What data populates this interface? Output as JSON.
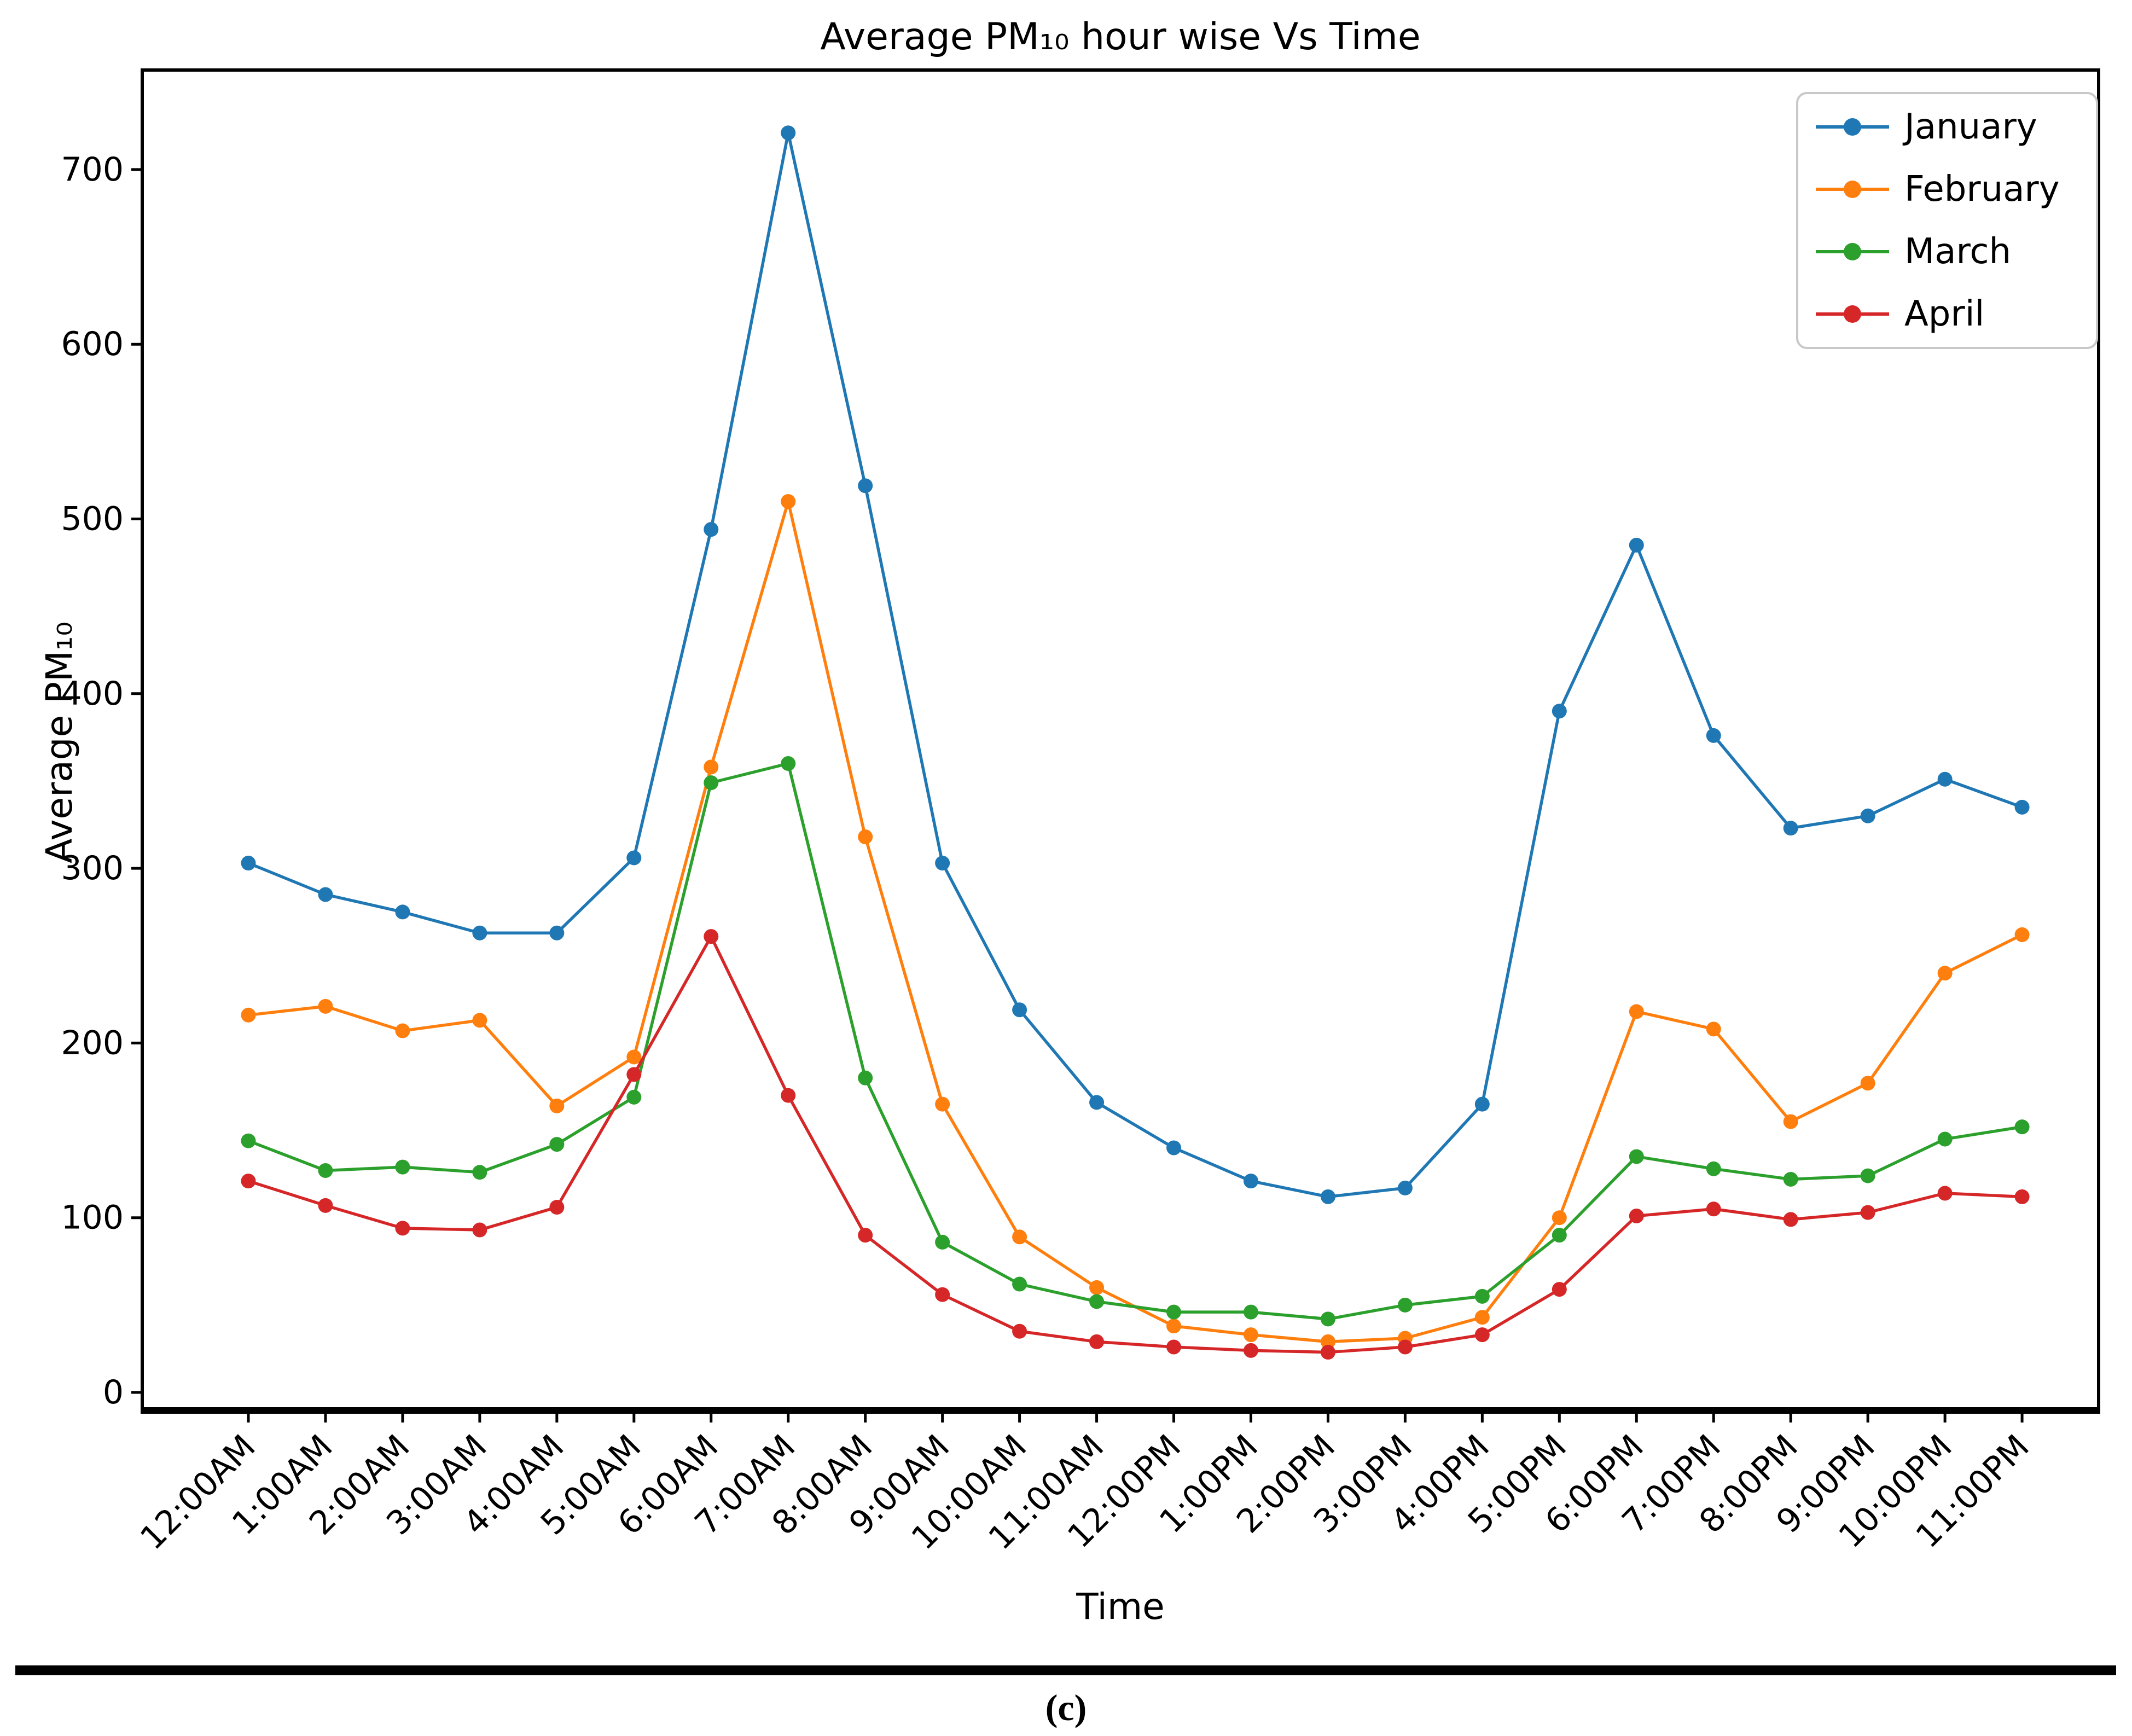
{
  "figure": {
    "title": "Average PM₁₀ hour wise Vs Time",
    "x_axis_label": "Time",
    "y_axis_label": "Average PM₁₀",
    "caption": "(c)"
  },
  "chart_data": {
    "type": "line",
    "title": "Average PM₁₀ hour wise Vs Time",
    "xlabel": "Time",
    "ylabel": "Average PM₁₀",
    "categories": [
      "12:00AM",
      "1:00AM",
      "2:00AM",
      "3:00AM",
      "4:00AM",
      "5:00AM",
      "6:00AM",
      "7:00AM",
      "8:00AM",
      "9:00AM",
      "10:00AM",
      "11:00AM",
      "12:00PM",
      "1:00PM",
      "2:00PM",
      "3:00PM",
      "4:00PM",
      "5:00PM",
      "6:00PM",
      "7:00PM",
      "8:00PM",
      "9:00PM",
      "10:00PM",
      "11:00PM"
    ],
    "yticks": [
      0,
      100,
      200,
      300,
      400,
      500,
      600,
      700
    ],
    "ylim": [
      -10,
      757
    ],
    "grid": false,
    "legend_position": "upper right",
    "marker": "circle",
    "series": [
      {
        "name": "January",
        "color": "#1f77b4",
        "values": [
          303,
          285,
          275,
          263,
          263,
          306,
          494,
          721,
          519,
          303,
          219,
          166,
          140,
          121,
          112,
          117,
          165,
          390,
          485,
          376,
          323,
          330,
          351,
          335
        ]
      },
      {
        "name": "February",
        "color": "#ff7f0e",
        "values": [
          216,
          221,
          207,
          213,
          164,
          192,
          358,
          510,
          318,
          165,
          89,
          60,
          38,
          33,
          29,
          31,
          43,
          100,
          218,
          208,
          155,
          177,
          240,
          262
        ]
      },
      {
        "name": "March",
        "color": "#2ca02c",
        "values": [
          144,
          127,
          129,
          126,
          142,
          169,
          349,
          360,
          180,
          86,
          62,
          52,
          46,
          46,
          42,
          50,
          55,
          90,
          135,
          128,
          122,
          124,
          145,
          152
        ]
      },
      {
        "name": "April",
        "color": "#d62728",
        "values": [
          121,
          107,
          94,
          93,
          106,
          182,
          261,
          170,
          90,
          56,
          35,
          29,
          26,
          24,
          23,
          26,
          33,
          59,
          101,
          105,
          99,
          103,
          114,
          112
        ]
      }
    ]
  },
  "colors": {
    "background": "#ffffff",
    "axis": "#000000",
    "legend_border": "#c8c8c8",
    "separator": "#000000"
  }
}
